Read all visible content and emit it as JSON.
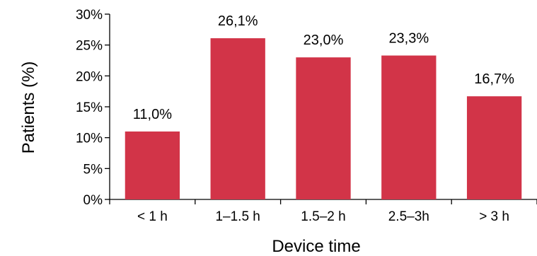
{
  "chart_data": {
    "type": "bar",
    "categories": [
      "< 1 h",
      "1–1.5 h",
      "1.5–2 h",
      "2.5–3h",
      "> 3 h"
    ],
    "values": [
      11.0,
      26.1,
      23.0,
      23.3,
      16.7
    ],
    "data_labels": [
      "11,0%",
      "26,1%",
      "23,0%",
      "23,3%",
      "16,7%"
    ],
    "title": "",
    "xlabel": "Device time",
    "ylabel": "Patients (%)",
    "ylim": [
      0,
      30
    ],
    "yticks": [
      0,
      5,
      10,
      15,
      20,
      25,
      30
    ],
    "ytick_labels": [
      "0%",
      "5%",
      "10%",
      "15%",
      "20%",
      "25%",
      "30%"
    ],
    "bar_color": "#D23448",
    "grid": false,
    "legend": "none"
  }
}
